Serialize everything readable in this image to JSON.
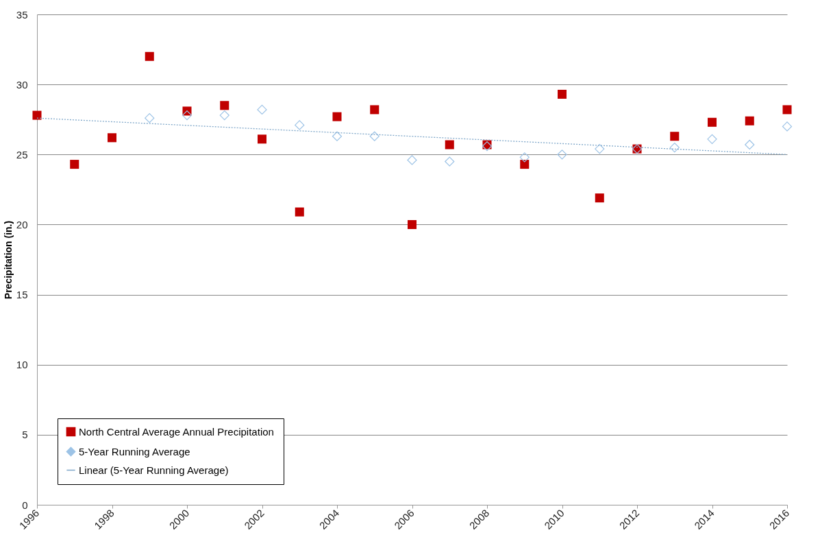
{
  "chart_data": {
    "type": "scatter",
    "ylabel": "Precipitation (in.)",
    "x": [
      1996,
      1997,
      1998,
      1999,
      2000,
      2001,
      2002,
      2003,
      2004,
      2005,
      2006,
      2007,
      2008,
      2009,
      2010,
      2011,
      2012,
      2013,
      2014,
      2015,
      2016
    ],
    "series": [
      {
        "name": "North Central Average Annual Precipitation",
        "color": "#c00000",
        "marker": "square",
        "values": [
          27.8,
          24.3,
          26.2,
          32.0,
          28.1,
          28.5,
          26.1,
          20.9,
          27.7,
          28.2,
          20.0,
          25.7,
          25.7,
          24.3,
          29.3,
          21.9,
          25.4,
          26.3,
          27.3,
          27.4,
          28.2
        ]
      },
      {
        "name": "5-Year Running Average",
        "color": "#9dc3e6",
        "marker": "diamond",
        "values": [
          null,
          null,
          null,
          27.6,
          27.8,
          27.8,
          28.2,
          27.1,
          26.3,
          26.3,
          24.6,
          24.5,
          25.6,
          24.8,
          25.0,
          25.4,
          25.4,
          25.5,
          26.1,
          25.7,
          27.0
        ]
      },
      {
        "name": "Linear (5-Year Running Average)",
        "type": "line",
        "color": "#7fa7c9",
        "line_style": "dotted",
        "x": [
          1996,
          2016
        ],
        "values": [
          27.6,
          25.0
        ]
      }
    ],
    "xlim": [
      1996,
      2016
    ],
    "xticks": [
      1996,
      1998,
      2000,
      2002,
      2004,
      2006,
      2008,
      2010,
      2012,
      2014,
      2016
    ],
    "ylim": [
      0,
      35
    ],
    "yticks": [
      0,
      5,
      10,
      15,
      20,
      25,
      30,
      35
    ],
    "grid": "y",
    "legend": "bottom left"
  }
}
